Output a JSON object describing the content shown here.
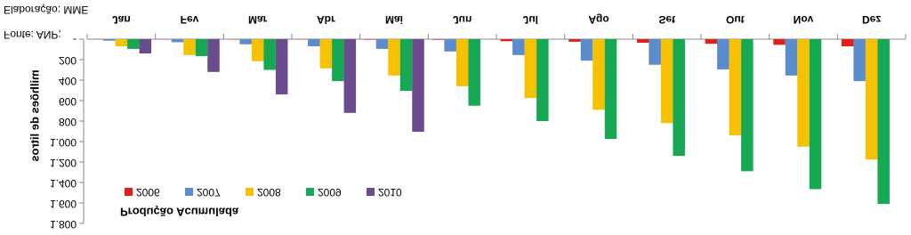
{
  "chart_data": {
    "type": "bar",
    "title": "Produção Acumulada",
    "y_label": "milhões de litros",
    "source": "Fonte: ANP;",
    "credit": "Elaboração: MME",
    "categories": [
      "Jan",
      "Fev",
      "Mar",
      "Abr",
      "Mai",
      "Jun",
      "Jul",
      "Ago",
      "Set",
      "Out",
      "Nov",
      "Dez"
    ],
    "series": [
      {
        "name": "2006",
        "color": "#e0201b",
        "values": [
          1,
          2,
          3,
          4,
          5,
          6,
          20,
          25,
          35,
          45,
          55,
          70
        ]
      },
      {
        "name": "2007",
        "color": "#5b8ccb",
        "values": [
          15,
          30,
          50,
          70,
          95,
          120,
          155,
          210,
          250,
          295,
          355,
          410
        ]
      },
      {
        "name": "2008",
        "color": "#f6c100",
        "values": [
          70,
          155,
          215,
          285,
          355,
          460,
          575,
          690,
          820,
          940,
          1050,
          1175
        ]
      },
      {
        "name": "2009",
        "color": "#17a853",
        "values": [
          95,
          165,
          300,
          410,
          505,
          650,
          800,
          975,
          1140,
          1290,
          1465,
          1610
        ]
      },
      {
        "name": "2010",
        "color": "#6a4b8e",
        "values": [
          140,
          320,
          540,
          720,
          905,
          null,
          null,
          null,
          null,
          null,
          null,
          null
        ]
      }
    ],
    "ylim": [
      0,
      1800
    ],
    "yticks": [
      {
        "value": 0,
        "label": "-"
      },
      200,
      400,
      600,
      800,
      {
        "value": 1000,
        "label": "1.000"
      },
      {
        "value": 1200,
        "label": "1.200"
      },
      {
        "value": 1400,
        "label": "1.400"
      },
      {
        "value": 1600,
        "label": "1.600"
      },
      {
        "value": 1800,
        "label": "1.800"
      }
    ],
    "legend": "lower-left",
    "flipped": true
  }
}
